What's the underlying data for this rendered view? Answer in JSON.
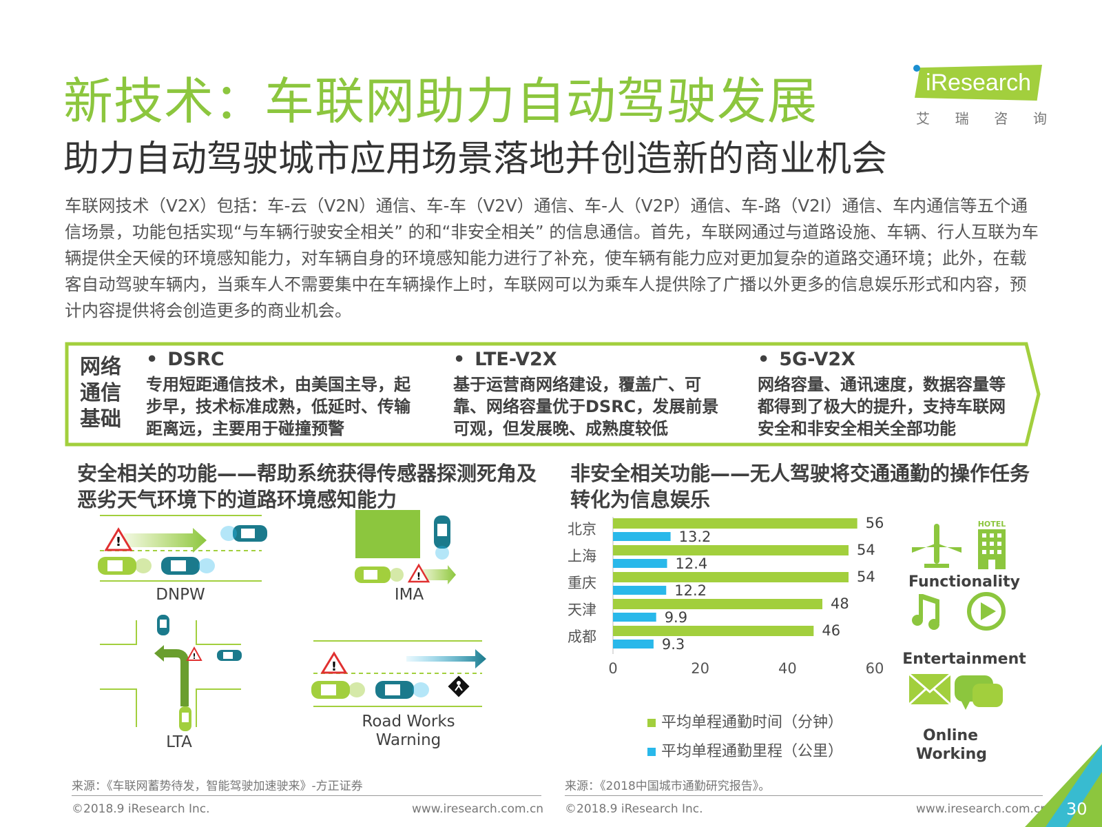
{
  "header": {
    "title": "新技术：车联网助力自动驾驶发展",
    "subtitle": "助力自动驾驶城市应用场景落地并创造新的商业机会"
  },
  "logo": {
    "brand": "iResearch",
    "cn": [
      "艾",
      "瑞",
      "咨",
      "询"
    ]
  },
  "intro": "车联网技术（V2X）包括：车-云（V2N）通信、车-车（V2V）通信、车-人（V2P）通信、车-路（V2I）通信、车内通信等五个通信场景，功能包括实现“与车辆行驶安全相关” 的和“非安全相关” 的信息通信。首先，车联网通过与道路设施、车辆、行人互联为车辆提供全天候的环境感知能力，对车辆自身的环境感知能力进行了补充，使车辆有能力应对更加复杂的道路交通环境；此外，在载客自动驾驶车辆内，当乘车人不需要集中在车辆操作上时，车联网可以为乘车人提供除了广播以外更多的信息娱乐形式和内容，预计内容提供将会创造更多的商业机会。",
  "tech": {
    "label": "网络通信基础",
    "bullet": "•",
    "items": [
      {
        "name": "DSRC",
        "desc": "专用短距通信技术，由美国主导，起步早，技术标准成熟，低延时、传输距离远，主要用于碰撞预警"
      },
      {
        "name": "LTE-V2X",
        "desc": "基于运营商网络建设，覆盖广、可靠、网络容量优于DSRC，发展前景可观，但发展晚、成熟度较低"
      },
      {
        "name": "5G-V2X",
        "desc": "网络容量、通讯速度，数据容量等都得到了极大的提升，支持车联网安全和非安全相关全部功能"
      }
    ]
  },
  "safety": {
    "title": "安全相关的功能——帮助系统获得传感器探测死角及恶劣天气环境下的道路环境感知能力",
    "scenes": {
      "dnpw": "DNPW",
      "ima": "IMA",
      "lta": "LTA",
      "rww": "Road Works Warning"
    },
    "source": "来源：《车联网蓄势待发，智能驾驶加速驶来》-方正证券"
  },
  "nonsafety": {
    "title": "非安全相关功能——无人驾驶将交通通勤的操作任务转化为信息娱乐",
    "features": [
      "Functionality",
      "Entertainment",
      "Online Working"
    ],
    "hotel_sign": "HOTEL",
    "source": "来源：《2018中国城市通勤研究报告》。"
  },
  "chart_data": {
    "type": "bar",
    "orientation": "horizontal",
    "categories": [
      "北京",
      "上海",
      "重庆",
      "天津",
      "成都"
    ],
    "series": [
      {
        "name": "平均单程通勤时间（分钟）",
        "values": [
          56,
          54,
          54,
          48,
          46
        ],
        "color": "#a2cf3d"
      },
      {
        "name": "平均单程通勤里程（公里）",
        "values": [
          13.2,
          12.4,
          12.2,
          9.9,
          9.3
        ],
        "color": "#29b8ea"
      }
    ],
    "xlim": [
      0,
      60
    ],
    "xticks": [
      "0",
      "20",
      "40",
      "60"
    ],
    "title": "",
    "xlabel": "",
    "ylabel": "",
    "legend": "bottom"
  },
  "footer": {
    "copyright_left": "©2018.9 iResearch Inc.",
    "url_left": "www.iresearch.com.cn",
    "copyright_right": "©2018.9 iResearch Inc.",
    "url_right": "www.iresearch.com.cn",
    "page": "30"
  },
  "colors": {
    "green": "#8cc63e",
    "teal": "#1b7a8c",
    "blue": "#29b8ea",
    "bar_green": "#a2cf3d"
  }
}
